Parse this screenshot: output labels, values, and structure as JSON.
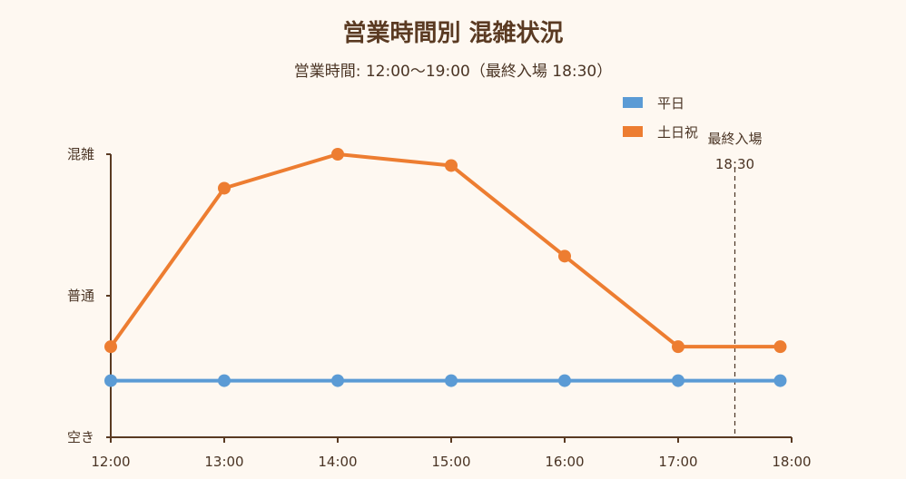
{
  "chart_data": {
    "type": "line",
    "title": "営業時間別 混雑状況",
    "subtitle": "営業時間: 12:00〜19:00（最終入場 18:30）",
    "categories": [
      "12:00",
      "13:00",
      "14:00",
      "15:00",
      "16:00",
      "17:00",
      "18:00"
    ],
    "x_values": [
      12.0,
      13.0,
      14.0,
      15.0,
      16.0,
      17.0,
      17.9
    ],
    "ylim": [
      0,
      2
    ],
    "y_ticks": [
      {
        "value": 0,
        "label": "空き"
      },
      {
        "value": 1,
        "label": "普通"
      },
      {
        "value": 2,
        "label": "混雑"
      }
    ],
    "series": [
      {
        "name": "平日",
        "color": "#5b9bd5",
        "values": [
          0.4,
          0.4,
          0.4,
          0.4,
          0.4,
          0.4,
          0.4
        ]
      },
      {
        "name": "土日祝",
        "color": "#ed7d31",
        "values": [
          0.64,
          1.76,
          2.0,
          1.92,
          1.28,
          0.64,
          0.64
        ]
      }
    ],
    "annotation": {
      "line1": "最終入場",
      "line2": "18:30",
      "x": 17.5
    },
    "legend_position": "top-right",
    "grid": false
  }
}
